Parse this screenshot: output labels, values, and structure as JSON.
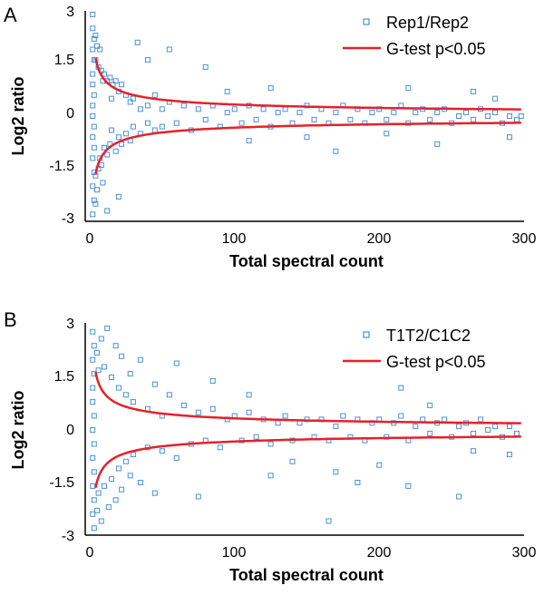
{
  "colors": {
    "points": "#4a90d9",
    "curve": "#e8202a",
    "axis": "#000000"
  },
  "chart_data": [
    {
      "type": "scatter",
      "panel_label": "A",
      "title": "",
      "xlabel": "Total spectral count",
      "ylabel": "Log2 ratio",
      "xlim": [
        0,
        300
      ],
      "ylim": [
        -3,
        3
      ],
      "xticks": [
        "0",
        "100",
        "200",
        "300"
      ],
      "yticks": [
        "3",
        "1.5",
        "0",
        "-1.5",
        "-3"
      ],
      "grid": false,
      "legend_position": "top-right",
      "series": [
        {
          "name": "Rep1/Rep2",
          "kind": "points",
          "points": [
            [
              2,
              2.9
            ],
            [
              2,
              2.5
            ],
            [
              3,
              2.2
            ],
            [
              2,
              1.9
            ],
            [
              3,
              1.6
            ],
            [
              2,
              1.2
            ],
            [
              2,
              0.9
            ],
            [
              3,
              0.6
            ],
            [
              2,
              0.3
            ],
            [
              2,
              0
            ],
            [
              3,
              -0.3
            ],
            [
              2,
              -0.6
            ],
            [
              3,
              -0.9
            ],
            [
              2,
              -1.2
            ],
            [
              3,
              -1.6
            ],
            [
              2,
              -2.0
            ],
            [
              3,
              -2.4
            ],
            [
              2,
              -2.8
            ],
            [
              4,
              2.3
            ],
            [
              4,
              1.6
            ],
            [
              4,
              -1.7
            ],
            [
              4,
              -2.5
            ],
            [
              5,
              2.0
            ],
            [
              5,
              -2.1
            ],
            [
              6,
              1.4
            ],
            [
              6,
              -1.5
            ],
            [
              7,
              1.9
            ],
            [
              7,
              -1.2
            ],
            [
              8,
              1.3
            ],
            [
              8,
              -1.4
            ],
            [
              9,
              1.0
            ],
            [
              9,
              -1.9
            ],
            [
              10,
              1.2
            ],
            [
              10,
              -0.9
            ],
            [
              12,
              1.0
            ],
            [
              12,
              -1.1
            ],
            [
              14,
              1.1
            ],
            [
              14,
              -0.8
            ],
            [
              15,
              0.5
            ],
            [
              15,
              -0.4
            ],
            [
              16,
              0.9
            ],
            [
              18,
              1.0
            ],
            [
              18,
              -1.0
            ],
            [
              20,
              0.7
            ],
            [
              20,
              -0.6
            ],
            [
              22,
              0.9
            ],
            [
              22,
              -0.8
            ],
            [
              25,
              0.6
            ],
            [
              25,
              -0.5
            ],
            [
              28,
              0.4
            ],
            [
              28,
              -0.7
            ],
            [
              30,
              0.5
            ],
            [
              30,
              -0.3
            ],
            [
              35,
              0.2
            ],
            [
              35,
              -0.5
            ],
            [
              40,
              0.3
            ],
            [
              40,
              -0.2
            ],
            [
              45,
              0.6
            ],
            [
              45,
              -0.4
            ],
            [
              50,
              0.2
            ],
            [
              50,
              -0.3
            ],
            [
              55,
              0.4
            ],
            [
              60,
              -0.2
            ],
            [
              65,
              0.3
            ],
            [
              70,
              -0.4
            ],
            [
              75,
              0.2
            ],
            [
              80,
              -0.1
            ],
            [
              85,
              0.3
            ],
            [
              90,
              -0.3
            ],
            [
              95,
              0.1
            ],
            [
              100,
              0.2
            ],
            [
              105,
              -0.2
            ],
            [
              110,
              0.3
            ],
            [
              115,
              -0.1
            ],
            [
              120,
              0.2
            ],
            [
              125,
              -0.3
            ],
            [
              130,
              0.1
            ],
            [
              135,
              0.2
            ],
            [
              140,
              -0.2
            ],
            [
              145,
              0.1
            ],
            [
              150,
              0.3
            ],
            [
              155,
              -0.1
            ],
            [
              160,
              0.2
            ],
            [
              165,
              -0.2
            ],
            [
              170,
              0.1
            ],
            [
              175,
              0.3
            ],
            [
              180,
              -0.1
            ],
            [
              185,
              0.2
            ],
            [
              190,
              -0.2
            ],
            [
              195,
              0.1
            ],
            [
              200,
              0.2
            ],
            [
              205,
              -0.1
            ],
            [
              210,
              0.1
            ],
            [
              215,
              0.3
            ],
            [
              220,
              -0.2
            ],
            [
              225,
              0.1
            ],
            [
              230,
              0.2
            ],
            [
              235,
              -0.1
            ],
            [
              240,
              0.1
            ],
            [
              245,
              0.2
            ],
            [
              250,
              -0.2
            ],
            [
              255,
              0.0
            ],
            [
              260,
              0.1
            ],
            [
              265,
              -0.1
            ],
            [
              270,
              0.2
            ],
            [
              275,
              0.0
            ],
            [
              280,
              0.1
            ],
            [
              285,
              -0.2
            ],
            [
              290,
              0.0
            ],
            [
              295,
              -0.1
            ],
            [
              298,
              0.0
            ],
            [
              33,
              2.1
            ],
            [
              55,
              1.9
            ],
            [
              40,
              1.6
            ],
            [
              80,
              1.4
            ],
            [
              20,
              -2.3
            ],
            [
              12,
              -2.7
            ],
            [
              125,
              0.8
            ],
            [
              150,
              -0.6
            ],
            [
              170,
              -1.0
            ],
            [
              205,
              -0.5
            ],
            [
              220,
              0.8
            ],
            [
              240,
              -0.8
            ],
            [
              265,
              0.7
            ],
            [
              280,
              0.5
            ],
            [
              290,
              -0.6
            ],
            [
              110,
              -0.7
            ],
            [
              95,
              0.7
            ]
          ]
        },
        {
          "name": "G-test p<0.05",
          "kind": "curve",
          "formula": "y = ±3.3 / sqrt(x)",
          "x_from": 4,
          "x_to": 298
        }
      ]
    },
    {
      "type": "scatter",
      "panel_label": "B",
      "title": "",
      "xlabel": "Total spectral count",
      "ylabel": "Log2 ratio",
      "xlim": [
        0,
        300
      ],
      "ylim": [
        -3,
        3
      ],
      "xticks": [
        "0",
        "100",
        "200",
        "300"
      ],
      "yticks": [
        "3",
        "1.5",
        "0",
        "-1.5",
        "-3"
      ],
      "grid": false,
      "legend_position": "top-right",
      "series": [
        {
          "name": "T1T2/C1C2",
          "kind": "points",
          "points": [
            [
              2,
              2.8
            ],
            [
              3,
              2.4
            ],
            [
              2,
              2.0
            ],
            [
              3,
              1.6
            ],
            [
              2,
              1.2
            ],
            [
              2,
              0.8
            ],
            [
              3,
              0.4
            ],
            [
              2,
              0
            ],
            [
              3,
              -0.4
            ],
            [
              2,
              -0.8
            ],
            [
              3,
              -1.2
            ],
            [
              2,
              -1.6
            ],
            [
              3,
              -2.0
            ],
            [
              2,
              -2.4
            ],
            [
              3,
              -2.8
            ],
            [
              5,
              2.2
            ],
            [
              5,
              -2.3
            ],
            [
              6,
              1.7
            ],
            [
              6,
              -1.8
            ],
            [
              8,
              2.6
            ],
            [
              8,
              -2.6
            ],
            [
              10,
              1.8
            ],
            [
              10,
              -1.6
            ],
            [
              12,
              2.9
            ],
            [
              13,
              -2.2
            ],
            [
              15,
              1.5
            ],
            [
              15,
              -1.4
            ],
            [
              18,
              2.4
            ],
            [
              18,
              -2.0
            ],
            [
              20,
              1.2
            ],
            [
              20,
              -1.1
            ],
            [
              22,
              2.1
            ],
            [
              22,
              -1.7
            ],
            [
              25,
              1.0
            ],
            [
              25,
              -0.9
            ],
            [
              28,
              1.6
            ],
            [
              28,
              -1.3
            ],
            [
              30,
              0.8
            ],
            [
              30,
              -0.7
            ],
            [
              35,
              2.0
            ],
            [
              35,
              -1.5
            ],
            [
              40,
              0.6
            ],
            [
              40,
              -0.5
            ],
            [
              45,
              1.3
            ],
            [
              45,
              -1.8
            ],
            [
              50,
              0.4
            ],
            [
              50,
              -0.6
            ],
            [
              55,
              1.0
            ],
            [
              60,
              -0.8
            ],
            [
              65,
              0.7
            ],
            [
              70,
              -0.4
            ],
            [
              75,
              0.5
            ],
            [
              80,
              -0.3
            ],
            [
              85,
              0.6
            ],
            [
              90,
              -0.5
            ],
            [
              95,
              0.3
            ],
            [
              100,
              0.4
            ],
            [
              105,
              -0.3
            ],
            [
              110,
              0.5
            ],
            [
              115,
              -0.2
            ],
            [
              120,
              0.3
            ],
            [
              125,
              -0.4
            ],
            [
              130,
              0.2
            ],
            [
              135,
              0.4
            ],
            [
              140,
              -0.3
            ],
            [
              145,
              0.2
            ],
            [
              150,
              0.3
            ],
            [
              155,
              -0.2
            ],
            [
              160,
              0.3
            ],
            [
              165,
              -0.3
            ],
            [
              170,
              0.1
            ],
            [
              175,
              0.4
            ],
            [
              180,
              -0.2
            ],
            [
              185,
              0.3
            ],
            [
              190,
              -0.3
            ],
            [
              195,
              0.2
            ],
            [
              200,
              0.3
            ],
            [
              205,
              -0.2
            ],
            [
              210,
              0.2
            ],
            [
              215,
              0.4
            ],
            [
              220,
              -0.3
            ],
            [
              225,
              0.1
            ],
            [
              230,
              0.3
            ],
            [
              235,
              -0.1
            ],
            [
              240,
              0.2
            ],
            [
              245,
              0.3
            ],
            [
              250,
              -0.2
            ],
            [
              255,
              0.1
            ],
            [
              260,
              0.2
            ],
            [
              265,
              -0.1
            ],
            [
              270,
              0.3
            ],
            [
              275,
              0.0
            ],
            [
              280,
              0.1
            ],
            [
              285,
              -0.2
            ],
            [
              290,
              0.1
            ],
            [
              295,
              -0.1
            ],
            [
              60,
              1.9
            ],
            [
              75,
              -1.9
            ],
            [
              85,
              1.4
            ],
            [
              110,
              1.0
            ],
            [
              125,
              -1.3
            ],
            [
              140,
              -0.9
            ],
            [
              165,
              -2.6
            ],
            [
              170,
              -1.2
            ],
            [
              185,
              -1.5
            ],
            [
              215,
              1.2
            ],
            [
              220,
              -1.6
            ],
            [
              235,
              0.7
            ],
            [
              255,
              -1.9
            ],
            [
              265,
              -0.6
            ],
            [
              290,
              -0.7
            ],
            [
              200,
              -1.0
            ]
          ]
        },
        {
          "name": "G-test p<0.05",
          "kind": "curve",
          "formula": "y = ±3.3 / sqrt(x)",
          "x_from": 4,
          "x_to": 298
        }
      ]
    }
  ]
}
